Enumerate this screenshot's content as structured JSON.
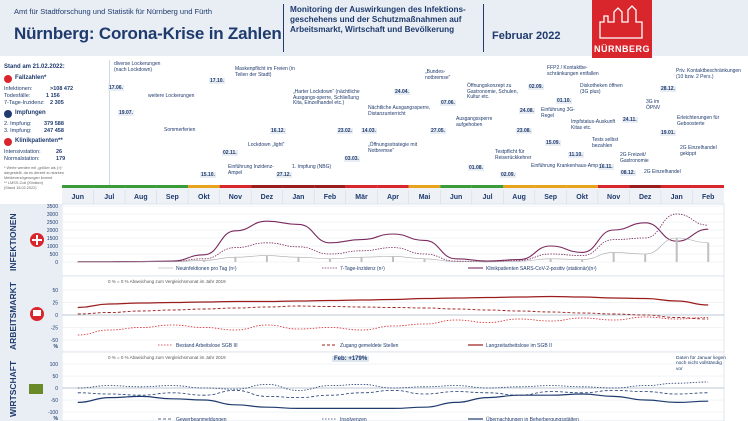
{
  "header": {
    "org": "Amt für Stadtforschung und Statistik für Nürnberg und Fürth",
    "title": "Nürnberg: Corona-Krise in Zahlen",
    "subtitle_line1": "Monitoring der Auswirkungen des Infektions-",
    "subtitle_line2": "geschehens und der Schutzmaßnahmen auf",
    "subtitle_line3": "Arbeitsmarkt, Wirtschaft und Bevölkerung",
    "month": "Februar 2022",
    "logo_text": "NÜRNBERG"
  },
  "sidebar": {
    "stand": "Stand am 21.02.2022:",
    "fallzahlen": "Fallzahlen*",
    "infektionen_label": "Infektionen:",
    "infektionen_value": ">108 472",
    "todesfaelle_label": "Todesfälle:",
    "todesfaelle_value": "1 156",
    "inzidenz_label": "7-Tage-Inzidenz:",
    "inzidenz_value": "2 305",
    "impfungen": "Impfungen",
    "impf2_label": "2. Impfung:",
    "impf2_value": "379 588",
    "impf3_label": "3. Impfung:",
    "impf3_value": "247 458",
    "klinik": "Klinikpatienten**",
    "intensiv_label": "Intensivstation:",
    "intensiv_value": "26",
    "normal_label": "Normalstation:",
    "normal_value": "179",
    "note1": "* Werte werden mit „größer als (>)“",
    "note2": "dargestellt, da es derzeit zu starken",
    "note3": "Meldeverzögerungen kommt",
    "note4": "** LMSS-Coli (Kliniken)",
    "note5": "(Stand 18.02.2022)"
  },
  "events": [
    {
      "date": "17.06.",
      "text": "diverse Lockerungen (nach Lockdown)"
    },
    {
      "date": "19.07.",
      "text": "weitere Lockerungen"
    },
    {
      "date": "",
      "text": "Sommerferien"
    },
    {
      "date": "17.10.",
      "text": "Maskenpflicht im Freien (in Teilen der Stadt)"
    },
    {
      "date": "02.11.",
      "text": "Lockdown „light“"
    },
    {
      "date": "15.10.",
      "text": "Einführung Inzidenz-Ampel"
    },
    {
      "date": "16.12.",
      "text": "„Harter Lockdown“ (nächtliche Ausgangs-sperre, Schließung Kita, Einzelhandel etc.)"
    },
    {
      "date": "27.12.",
      "text": "1. Impfung (NBG)"
    },
    {
      "date": "03.03.",
      "text": "„Öffnungsstrategie mit Notbremse“"
    },
    {
      "date": "23.02.",
      "text": ""
    },
    {
      "date": "14.03.",
      "text": "Nächtliche Ausgangssperre, Distanzunterricht"
    },
    {
      "date": "24.04.",
      "text": "„Bundes-notbremse“"
    },
    {
      "date": "27.05.",
      "text": "Ausgangssperre aufgehoben"
    },
    {
      "date": "07.06.",
      "text": "Öffnungskonzept zu Gastronomie, Schulen, Kultur etc."
    },
    {
      "date": "02.09.",
      "text": "FFP2 / Kontaktbe-schränkungen entfallen"
    },
    {
      "date": "01.10.",
      "text": "Diskotheken öffnen (3G plus)"
    },
    {
      "date": "24.08.",
      "text": "Einführung 3G-Regel"
    },
    {
      "date": "23.08.",
      "text": ""
    },
    {
      "date": "15.09.",
      "text": "Impfstatus-Auskunft Kitas etc."
    },
    {
      "date": "11.10.",
      "text": "Tests selbst bezahlen"
    },
    {
      "date": "01.08.",
      "text": "Testpflicht für Reiserückkehrer"
    },
    {
      "date": "02.09.",
      "text": "Einführung Krankenhaus-Ampel"
    },
    {
      "date": "16.11.",
      "text": "2G Freizeit/ Gastronomie"
    },
    {
      "date": "08.12.",
      "text": "2G Einzelhandel"
    },
    {
      "date": "24.11.",
      "text": "3G im ÖPNV"
    },
    {
      "date": "19.01.",
      "text": "Erleichterungen für Geboosterte"
    },
    {
      "date": "",
      "text": "2G Einzelhandel gekippt"
    },
    {
      "date": "28.12.",
      "text": "Priv. Kontaktbeschränkungen (10 bzw. 2 Pers.)"
    }
  ],
  "months": [
    "Jun",
    "Jul",
    "Aug",
    "Sep",
    "Okt",
    "Nov",
    "Dez",
    "Jan",
    "Feb",
    "Mär",
    "Apr",
    "Mai",
    "Jun",
    "Jul",
    "Aug",
    "Sep",
    "Okt",
    "Nov",
    "Dez",
    "Jan",
    "Feb"
  ],
  "year_marks": {
    "y2020": "2020",
    "y2021": "2021"
  },
  "panels": {
    "infektionen": {
      "label": "INFEKTIONEN",
      "legend": [
        "Neuinfektionen pro Tag (n¹)",
        "7-Tage-Inzidenz (n¹)",
        "Klinikpatienten SARS-CoV-2-positiv (stationär)(n¹)"
      ],
      "axis_left_labels": [
        "3500",
        "3000",
        "2500",
        "2000",
        "1500",
        "1000",
        "500",
        "0"
      ],
      "axis_units": [
        "#Ab",
        "#B"
      ]
    },
    "arbeitsmarkt": {
      "label": "ARBEITSMARKT",
      "note": "0 % = 0 % Abweichung zum Vergleichsmonat im Jahr 2019",
      "legend": [
        "Bestand Arbeitslose SGB III",
        "Zugang gemeldete Stellen",
        "Langzeitarbeitslose im SGB II"
      ],
      "axis_labels": [
        "50",
        "25",
        "0",
        "-25",
        "-50",
        "%"
      ]
    },
    "wirtschaft": {
      "label": "WIRTSCHAFT",
      "note": "0 % = 0 % Abweichung zum Vergleichsmonat im Jahr 2019",
      "callout": "Feb: +179%",
      "side_note": "Daten für Januar liegen noch nicht vollständig vor",
      "legend": [
        "Gewerbeanmeldungen",
        "Insolvenzen",
        "Übernachtungen in Beherbergungsstätten"
      ],
      "axis_labels": [
        "100",
        "50",
        "0",
        "-50",
        "-100",
        "%"
      ]
    }
  },
  "colors": {
    "navy": "#1f3b6e",
    "red": "#d8262c",
    "infections": "#7a2a5e",
    "header_bg": "#e9eef4",
    "dark_red": "#9b1c1c",
    "amber": "#e8a31c",
    "green": "#3a9b3a"
  },
  "chart_data": [
    {
      "type": "line",
      "title": "",
      "xlabel": "",
      "ylabel": "",
      "ylim": [
        0,
        3500
      ],
      "x": [
        "Jun",
        "Jul",
        "Aug",
        "Sep",
        "Okt",
        "Nov",
        "Dez",
        "Jan",
        "Feb",
        "Mär",
        "Apr",
        "Mai",
        "Jun",
        "Jul",
        "Aug",
        "Sep",
        "Okt",
        "Nov",
        "Dez",
        "Jan",
        "Feb"
      ],
      "series": [
        {
          "name": "Klinikpatienten SARS-CoV-2-positiv (stationär)",
          "values": [
            20,
            20,
            30,
            60,
            450,
            1950,
            2550,
            2350,
            1200,
            1400,
            1750,
            1350,
            200,
            60,
            150,
            1000,
            600,
            2000,
            2450,
            1300,
            2050
          ]
        },
        {
          "name": "7-Tage-Inzidenz",
          "values": [
            10,
            10,
            20,
            40,
            200,
            900,
            1200,
            950,
            500,
            700,
            900,
            500,
            50,
            20,
            100,
            500,
            400,
            1400,
            1500,
            3000,
            2300
          ]
        },
        {
          "name": "Neuinfektionen pro Tag",
          "values": [
            5,
            5,
            10,
            20,
            100,
            300,
            400,
            300,
            200,
            300,
            350,
            200,
            20,
            10,
            50,
            200,
            150,
            600,
            500,
            1500,
            1200
          ]
        }
      ]
    },
    {
      "type": "line",
      "title": "",
      "ylim": [
        -50,
        50
      ],
      "x": [
        "Jun",
        "Jul",
        "Aug",
        "Sep",
        "Okt",
        "Nov",
        "Dez",
        "Jan",
        "Feb",
        "Mär",
        "Apr",
        "Mai",
        "Jun",
        "Jul",
        "Aug",
        "Sep",
        "Okt",
        "Nov",
        "Dez",
        "Jan",
        "Feb"
      ],
      "series": [
        {
          "name": "Langzeitarbeitslose im SGB II",
          "values": [
            15,
            22,
            24,
            25,
            26,
            27,
            27,
            28,
            29,
            30,
            31,
            33,
            34,
            35,
            36,
            37,
            36,
            34,
            33,
            28,
            20
          ]
        },
        {
          "name": "Bestand Arbeitslose SGB III",
          "values": [
            2,
            5,
            8,
            10,
            12,
            14,
            16,
            18,
            17,
            16,
            15,
            14,
            12,
            10,
            8,
            6,
            4,
            2,
            0,
            -5,
            -8
          ]
        },
        {
          "name": "Zugang gemeldete Stellen",
          "values": [
            -40,
            -30,
            -25,
            -20,
            -25,
            -30,
            -20,
            -28,
            -25,
            -30,
            -22,
            -18,
            -10,
            -15,
            -8,
            -12,
            -6,
            -10,
            -4,
            -8,
            -5
          ]
        }
      ]
    },
    {
      "type": "line",
      "title": "",
      "ylim": [
        -100,
        100
      ],
      "x": [
        "Jun",
        "Jul",
        "Aug",
        "Sep",
        "Okt",
        "Nov",
        "Dez",
        "Jan",
        "Feb",
        "Mär",
        "Apr",
        "Mai",
        "Jun",
        "Jul",
        "Aug",
        "Sep",
        "Okt",
        "Nov",
        "Dez",
        "Jan",
        "Feb"
      ],
      "series": [
        {
          "name": "Übernachtungen in Beherbergungsstätten",
          "values": [
            -60,
            -40,
            -35,
            -45,
            -50,
            -70,
            -80,
            -85,
            -85,
            -85,
            -85,
            -80,
            -60,
            -40,
            -30,
            -30,
            -25,
            -35,
            -50,
            -60,
            -55
          ]
        },
        {
          "name": "Gewerbeanmeldungen",
          "values": [
            0,
            10,
            5,
            10,
            0,
            -5,
            15,
            -10,
            10,
            15,
            0,
            5,
            10,
            0,
            5,
            10,
            5,
            0,
            10,
            20,
            25
          ]
        },
        {
          "name": "Insolvenzen",
          "values": [
            -20,
            -25,
            -30,
            -20,
            -30,
            -10,
            -35,
            -40,
            -30,
            -20,
            -10,
            -25,
            -15,
            -20,
            -30,
            -15,
            -20,
            -10,
            -15,
            -25,
            -20
          ]
        }
      ]
    }
  ]
}
